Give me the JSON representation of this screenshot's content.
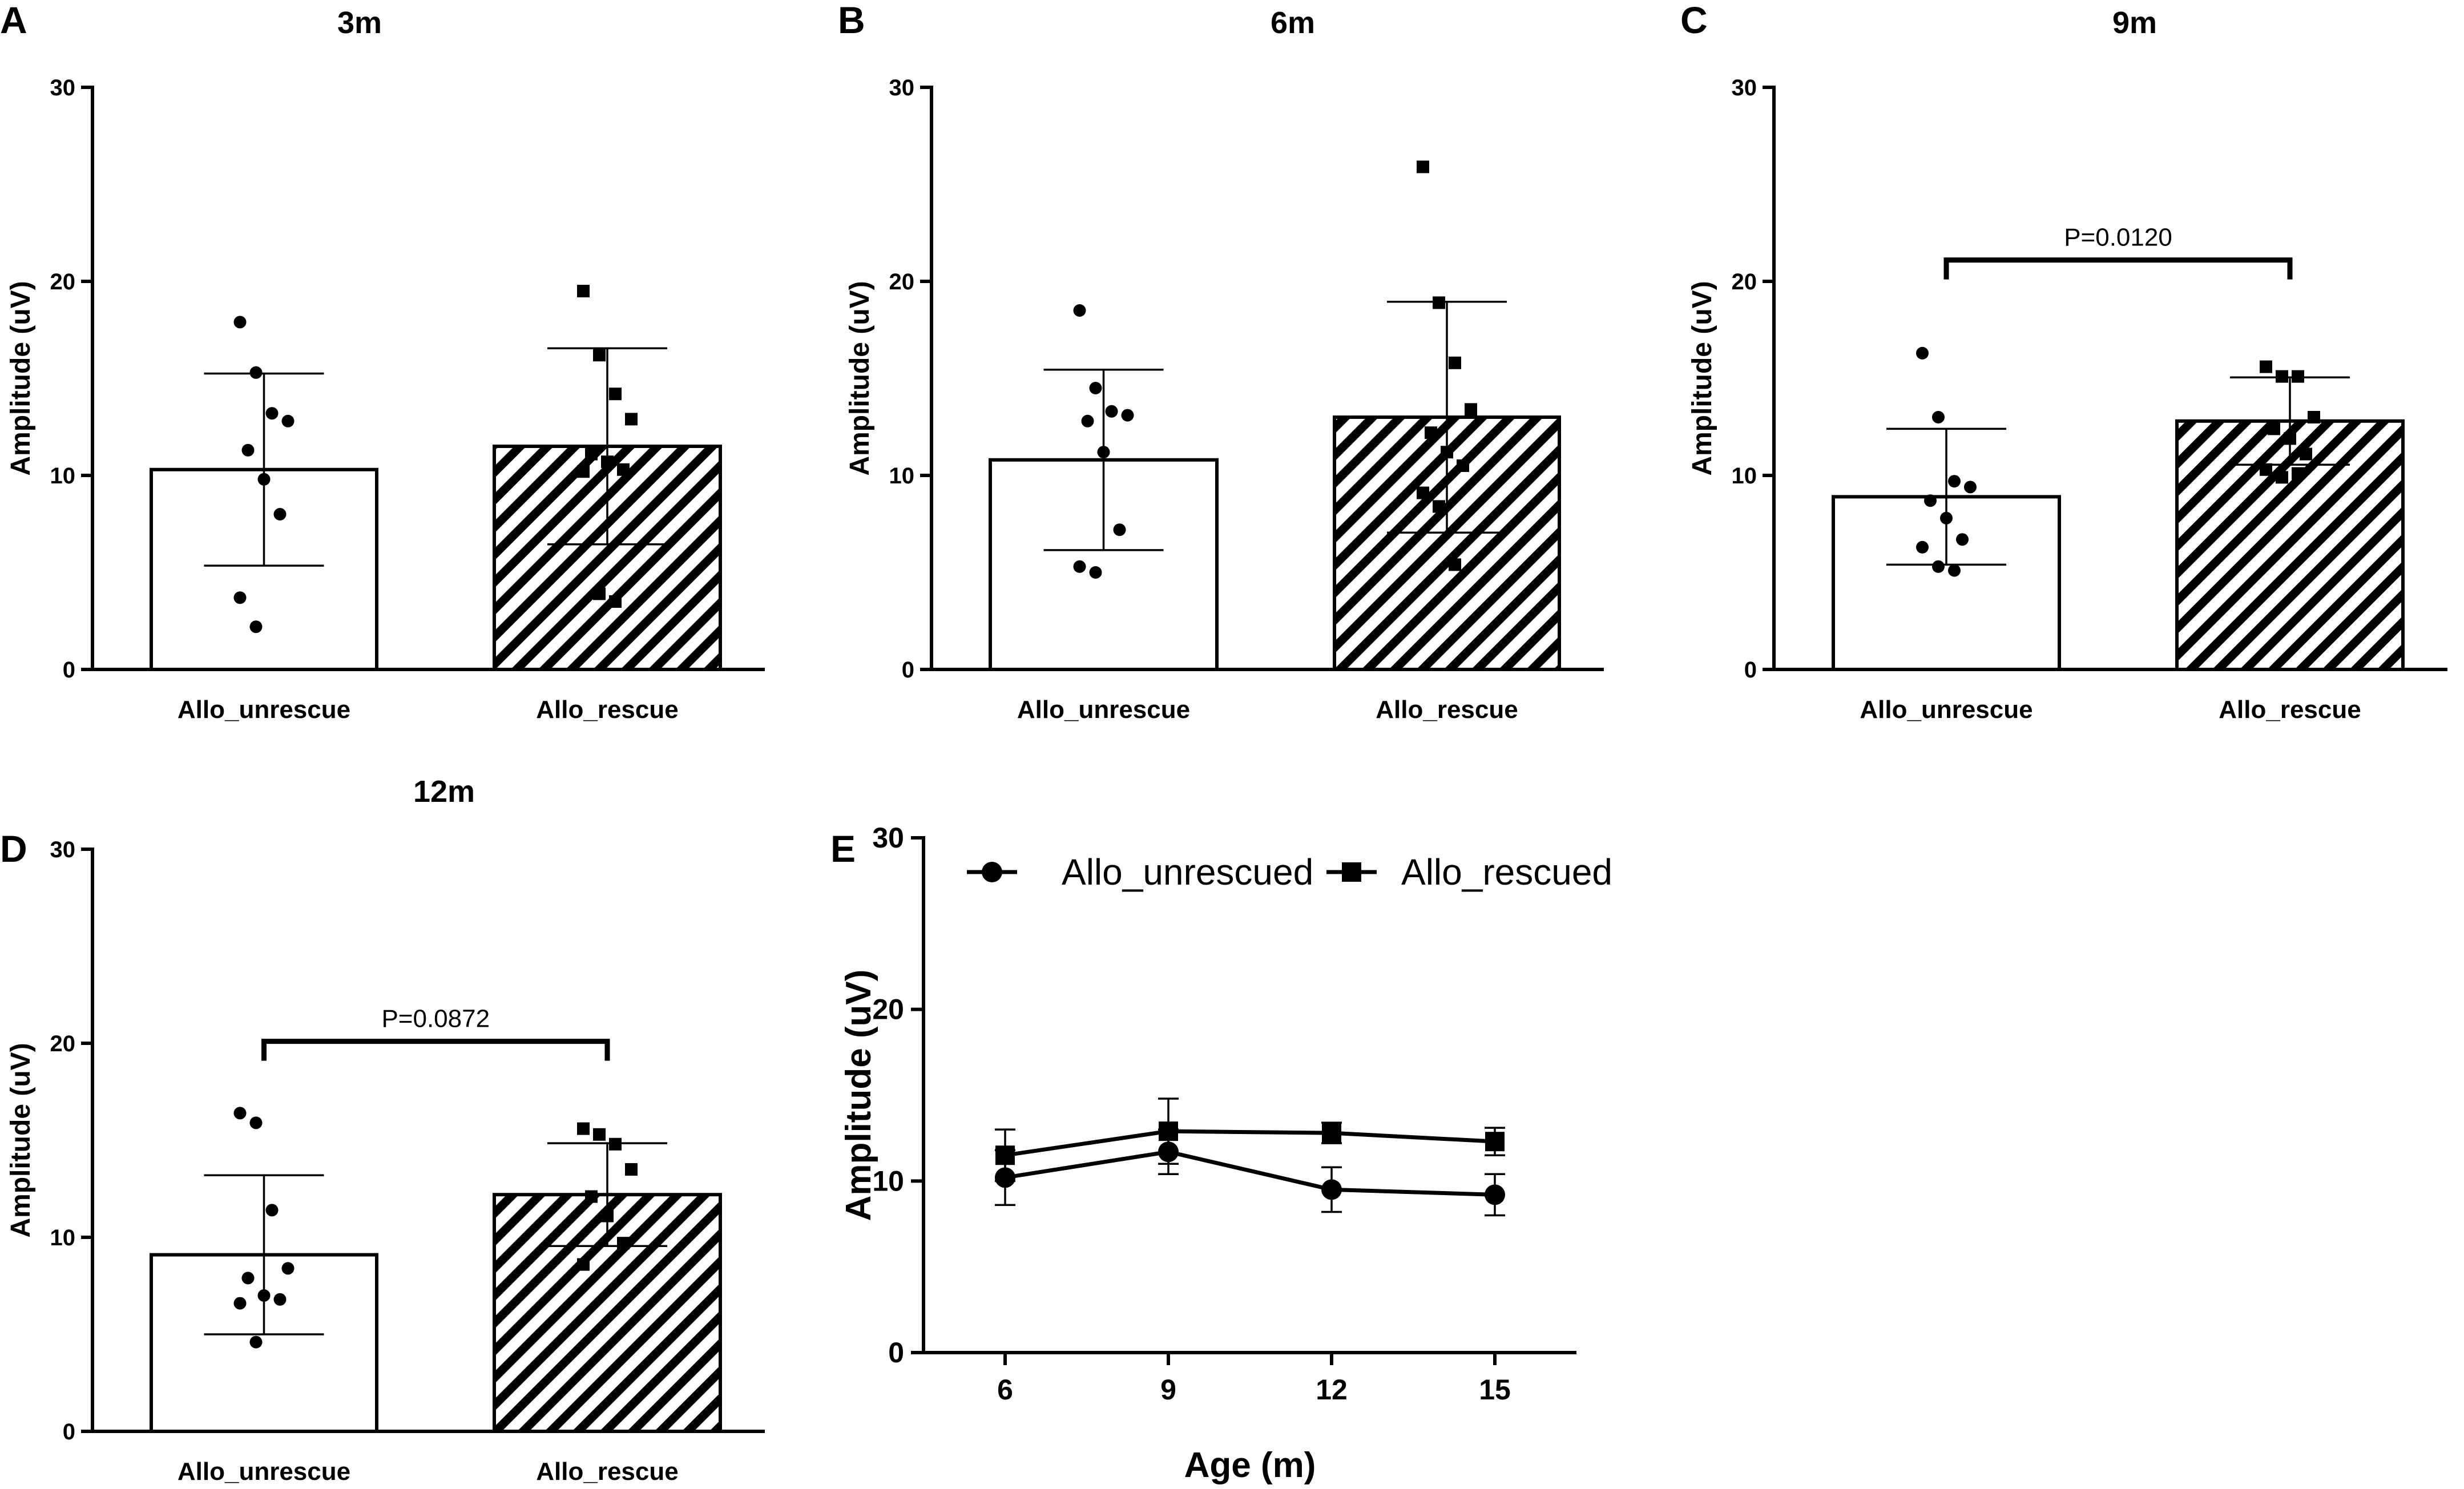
{
  "chart_data": [
    {
      "panel": "A",
      "type": "bar",
      "title": "3m",
      "ylabel": "Amplitude (uV)",
      "xlabel": "",
      "ylim": [
        0,
        30
      ],
      "yticks": [
        "0",
        "10",
        "20",
        "30"
      ],
      "categories": [
        "Allo_unrescue",
        "Allo_rescue"
      ],
      "means": [
        10.3,
        11.5
      ],
      "sd": [
        4.95,
        5.05
      ],
      "points": [
        [
          17.9,
          15.3,
          13.2,
          12.8,
          11.3,
          9.8,
          8.0,
          3.7,
          2.2
        ],
        [
          19.5,
          16.2,
          14.2,
          12.9,
          11.1,
          10.7,
          10.3,
          10.2,
          3.9,
          3.5
        ]
      ],
      "annotation": null
    },
    {
      "panel": "B",
      "type": "bar",
      "title": "6m",
      "ylabel": "Amplitude (uV)",
      "xlabel": "",
      "ylim": [
        0,
        30
      ],
      "yticks": [
        "0",
        "10",
        "20",
        "30"
      ],
      "categories": [
        "Allo_unrescue",
        "Allo_rescue"
      ],
      "means": [
        10.8,
        13.0
      ],
      "sd": [
        4.65,
        5.95
      ],
      "points": [
        [
          18.5,
          14.5,
          13.3,
          13.1,
          12.8,
          11.2,
          7.2,
          5.3,
          5.0
        ],
        [
          25.9,
          18.9,
          15.8,
          13.4,
          12.2,
          11.2,
          10.5,
          9.1,
          8.4,
          5.4
        ]
      ],
      "annotation": null
    },
    {
      "panel": "C",
      "type": "bar",
      "title": "9m",
      "ylabel": "Amplitude (uV)",
      "xlabel": "",
      "ylim": [
        0,
        30
      ],
      "yticks": [
        "0",
        "10",
        "20",
        "30"
      ],
      "categories": [
        "Allo_unrescue",
        "Allo_rescue"
      ],
      "means": [
        8.9,
        12.8
      ],
      "sd": [
        3.5,
        2.25
      ],
      "points": [
        [
          16.3,
          13.0,
          9.7,
          9.4,
          8.7,
          7.8,
          6.7,
          6.3,
          5.3,
          5.1
        ],
        [
          15.6,
          15.1,
          15.1,
          13.0,
          12.4,
          11.9,
          11.1,
          10.3,
          9.9,
          10.1
        ]
      ],
      "annotation": {
        "text": "P=0.0120",
        "bracket_value": 21.1
      }
    },
    {
      "panel": "D",
      "type": "bar",
      "title": "12m",
      "ylabel": "Amplitude (uV)",
      "xlabel": "",
      "ylim": [
        0,
        30
      ],
      "yticks": [
        "0",
        "10",
        "20",
        "30"
      ],
      "categories": [
        "Allo_unrescue",
        "Allo_rescue"
      ],
      "means": [
        9.1,
        12.2
      ],
      "sd": [
        4.1,
        2.65
      ],
      "points": [
        [
          16.4,
          15.9,
          11.4,
          8.4,
          7.9,
          7.0,
          6.8,
          6.6,
          4.6
        ],
        [
          15.6,
          15.3,
          14.8,
          13.5,
          12.1,
          11.1,
          9.7,
          8.6
        ]
      ],
      "annotation": {
        "text": "P=0.0872",
        "bracket_value": 20.1
      }
    },
    {
      "panel": "E",
      "type": "line",
      "title": "",
      "xlabel": "Age (m)",
      "ylabel": "Amplitude (uV)",
      "x": [
        6,
        9,
        12,
        15
      ],
      "xticks": [
        "6",
        "9",
        "12",
        "15"
      ],
      "xlim": [
        4.5,
        16.5
      ],
      "ylim": [
        0,
        30
      ],
      "yticks": [
        "0",
        "10",
        "20",
        "30"
      ],
      "series": [
        {
          "name": "Allo_unrescued",
          "marker": "circle",
          "values": [
            10.2,
            11.7,
            9.5,
            9.2
          ],
          "err": [
            1.6,
            1.3,
            1.3,
            1.2
          ]
        },
        {
          "name": "Allo_rescued",
          "marker": "square",
          "values": [
            11.5,
            12.9,
            12.8,
            12.3
          ],
          "err": [
            1.5,
            1.9,
            0.6,
            0.8
          ]
        }
      ],
      "legend": "top"
    }
  ]
}
